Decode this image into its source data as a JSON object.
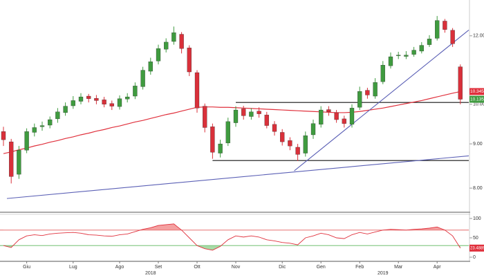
{
  "chart_data": {
    "type": "candlestick",
    "categories": [
      null,
      null,
      null,
      "Giu",
      null,
      null,
      null,
      null,
      null,
      "Lug",
      null,
      null,
      null,
      null,
      null,
      "Ago",
      null,
      null,
      null,
      null,
      "Set",
      null,
      null,
      null,
      null,
      "Ott",
      null,
      null,
      null,
      null,
      "Nov",
      null,
      null,
      null,
      null,
      null,
      "Dic",
      null,
      null,
      null,
      null,
      "Gen",
      null,
      null,
      null,
      null,
      "Feb",
      null,
      null,
      null,
      null,
      "Mar",
      null,
      null,
      null,
      null,
      "Apr",
      null,
      null,
      null
    ],
    "year_labels": [
      "2018",
      "2019"
    ],
    "candles": {
      "up_color": "#3f9b3f",
      "down_color": "#d9303a",
      "open": [
        9.3,
        9.05,
        8.3,
        8.85,
        9.28,
        9.42,
        9.46,
        9.62,
        9.78,
        9.96,
        10.08,
        10.22,
        10.16,
        10.12,
        10.02,
        9.94,
        10.14,
        10.22,
        10.48,
        10.92,
        11.22,
        11.58,
        11.82,
        12.05,
        11.62,
        10.88,
        9.95,
        9.42,
        8.78,
        9.02,
        9.52,
        9.88,
        9.68,
        9.82,
        9.72,
        9.48,
        9.28,
        9.08,
        8.92,
        8.78,
        9.22,
        9.48,
        9.86,
        9.78,
        9.62,
        9.48,
        9.92,
        10.38,
        10.22,
        10.62,
        11.08,
        11.38,
        11.36,
        11.42,
        11.52,
        11.72,
        11.92,
        12.48,
        12.18,
        11.05
      ],
      "high": [
        9.42,
        9.12,
        8.95,
        9.38,
        9.5,
        9.55,
        9.68,
        9.9,
        10.05,
        10.22,
        10.3,
        10.28,
        10.25,
        10.2,
        10.1,
        10.24,
        10.3,
        10.6,
        11.05,
        11.32,
        11.72,
        11.92,
        12.3,
        12.12,
        11.7,
        10.95,
        10.02,
        9.5,
        9.1,
        9.65,
        9.95,
        9.96,
        9.9,
        9.92,
        9.8,
        9.56,
        9.36,
        9.16,
        9.0,
        9.3,
        9.6,
        9.95,
        9.95,
        9.85,
        9.7,
        10.0,
        10.48,
        10.45,
        10.72,
        11.22,
        11.48,
        11.5,
        11.52,
        11.65,
        11.8,
        12.02,
        12.65,
        12.55,
        12.25,
        11.12
      ],
      "low": [
        8.95,
        8.1,
        8.2,
        8.78,
        9.18,
        9.32,
        9.38,
        9.52,
        9.7,
        9.88,
        10.0,
        10.05,
        10.0,
        9.92,
        9.85,
        9.86,
        10.05,
        10.14,
        10.4,
        10.82,
        11.12,
        11.48,
        11.72,
        11.45,
        10.78,
        9.78,
        9.28,
        8.65,
        8.68,
        8.95,
        9.42,
        9.6,
        9.6,
        9.65,
        9.38,
        9.2,
        8.96,
        8.85,
        8.6,
        8.7,
        9.12,
        9.4,
        9.7,
        9.52,
        9.4,
        9.4,
        9.85,
        10.15,
        10.15,
        10.55,
        11.0,
        11.28,
        11.28,
        11.35,
        11.45,
        11.65,
        11.85,
        12.1,
        11.65,
        10.0
      ],
      "close": [
        9.1,
        8.25,
        8.85,
        9.3,
        9.4,
        9.45,
        9.6,
        9.8,
        9.95,
        10.1,
        10.2,
        10.15,
        10.1,
        10.0,
        9.95,
        10.15,
        10.2,
        10.5,
        10.95,
        11.2,
        11.6,
        11.8,
        12.1,
        11.6,
        10.9,
        9.9,
        9.4,
        8.8,
        9.0,
        9.55,
        9.85,
        9.7,
        9.8,
        9.75,
        9.45,
        9.3,
        9.05,
        8.95,
        8.75,
        9.2,
        9.5,
        9.85,
        9.8,
        9.6,
        9.5,
        9.9,
        10.35,
        10.25,
        10.6,
        11.1,
        11.35,
        11.4,
        11.4,
        11.55,
        11.7,
        11.9,
        12.5,
        12.2,
        11.75,
        10.135
      ]
    },
    "ma": {
      "color": "#e0303c",
      "values": [
        8.77,
        8.81,
        8.86,
        8.9,
        8.95,
        8.99,
        9.04,
        9.08,
        9.13,
        9.17,
        9.22,
        9.26,
        9.31,
        9.35,
        9.4,
        9.44,
        9.49,
        9.54,
        9.58,
        9.63,
        9.68,
        9.73,
        9.77,
        9.82,
        9.87,
        9.92,
        9.93,
        9.93,
        9.92,
        9.92,
        9.91,
        9.9,
        9.89,
        9.88,
        9.87,
        9.86,
        9.85,
        9.84,
        9.83,
        9.82,
        9.81,
        9.8,
        9.79,
        9.78,
        9.78,
        9.79,
        9.81,
        9.84,
        9.87,
        9.9,
        9.94,
        9.98,
        10.02,
        10.06,
        10.1,
        10.15,
        10.2,
        10.25,
        10.3,
        10.345
      ]
    },
    "trendlines": [
      {
        "color": "#5a5fb5",
        "from": [
          1,
          7.79
        ],
        "to": [
          59,
          8.7
        ]
      },
      {
        "color": "#5a5fb5",
        "from": [
          38,
          8.44
        ],
        "to": [
          58,
          11.77
        ]
      }
    ],
    "levels": [
      {
        "from": 30,
        "value": 10.05
      },
      {
        "from": 27,
        "value": 8.61
      }
    ],
    "log_scale": true,
    "ylim": [
      7.53,
      13.2
    ],
    "yticks": [
      {
        "value": 8,
        "label": "8.00"
      },
      {
        "value": 9,
        "label": "9.00"
      },
      {
        "value": 10,
        "label": "10.00"
      },
      {
        "value": 12,
        "label": "12.00"
      }
    ],
    "rsi": {
      "color": "#e0303c",
      "values": [
        30,
        25,
        45,
        55,
        58,
        56,
        60,
        62,
        63,
        64,
        62,
        58,
        57,
        55,
        54,
        58,
        60,
        66,
        72,
        76,
        82,
        84,
        86,
        70,
        50,
        30,
        22,
        18,
        28,
        45,
        55,
        52,
        55,
        52,
        45,
        42,
        38,
        36,
        32,
        50,
        55,
        62,
        58,
        50,
        48,
        58,
        64,
        60,
        65,
        70,
        72,
        71,
        70,
        72,
        73,
        75,
        78,
        70,
        55,
        23.4889
      ],
      "upper": 70,
      "lower": 30,
      "upper_color": "#e05050",
      "lower_color": "#50b050",
      "ylim": [
        0,
        100
      ],
      "yticks": [
        0,
        50,
        100
      ]
    }
  }
}
